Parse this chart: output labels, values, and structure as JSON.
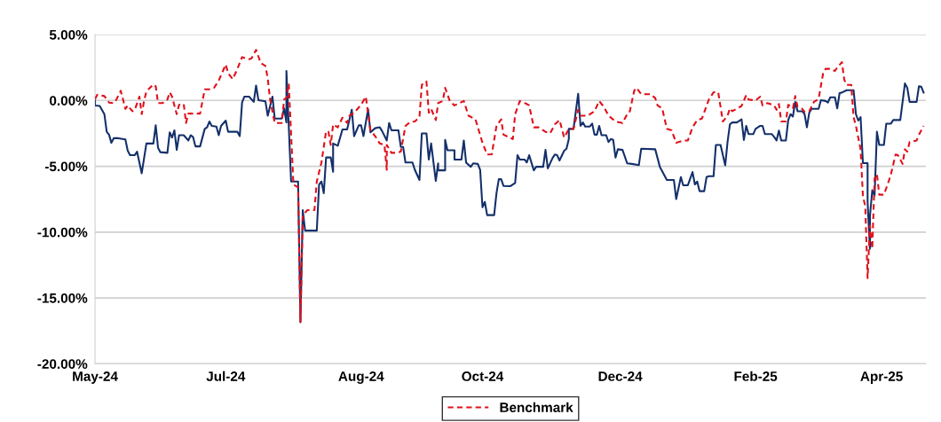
{
  "chart_data": {
    "type": "line",
    "xlim": [
      "2024-05-06",
      "2025-04-27"
    ],
    "ylim": [
      -20,
      5
    ],
    "xticks": [
      {
        "value": "2024-05-06",
        "label": "May-24"
      },
      {
        "value": "2024-07-01",
        "label": "Jul-24"
      },
      {
        "value": "2024-08-28",
        "label": "Aug-24"
      },
      {
        "value": "2024-10-19",
        "label": "Oct-24"
      },
      {
        "value": "2024-12-17",
        "label": "Dec-24"
      },
      {
        "value": "2025-02-13",
        "label": "Feb-25"
      },
      {
        "value": "2025-04-08",
        "label": "Apr-25"
      }
    ],
    "yticks": [
      {
        "value": 5,
        "label": "5.00%"
      },
      {
        "value": 0,
        "label": "0.00%"
      },
      {
        "value": -5,
        "label": "-5.00%"
      },
      {
        "value": -10,
        "label": "-10.00%"
      },
      {
        "value": -15,
        "label": "-15.00%"
      },
      {
        "value": -20,
        "label": "-20.00%"
      }
    ],
    "grid": "y",
    "legend": "bottom",
    "marker": "none",
    "series": [
      {
        "color": "#14306b",
        "line_style": "solid",
        "x": [
          "2024-05-06",
          "2024-05-06",
          "2024-05-08",
          "2024-05-10",
          "2024-05-11",
          "2024-05-12",
          "2024-05-13",
          "2024-05-14",
          "2024-05-16",
          "2024-05-19",
          "2024-05-20",
          "2024-05-21",
          "2024-05-23",
          "2024-05-24",
          "2024-05-26",
          "2024-05-28",
          "2024-05-31",
          "2024-06-01",
          "2024-06-02",
          "2024-06-03",
          "2024-06-06",
          "2024-06-07",
          "2024-06-08",
          "2024-06-09",
          "2024-06-10",
          "2024-06-11",
          "2024-06-13",
          "2024-06-15",
          "2024-06-16",
          "2024-06-17",
          "2024-06-18",
          "2024-06-20",
          "2024-06-22",
          "2024-06-23",
          "2024-06-24",
          "2024-06-25",
          "2024-06-27",
          "2024-06-28",
          "2024-06-29",
          "2024-07-01",
          "2024-07-02",
          "2024-07-06",
          "2024-07-07",
          "2024-07-08",
          "2024-07-09",
          "2024-07-11",
          "2024-07-13",
          "2024-07-14",
          "2024-07-15",
          "2024-07-18",
          "2024-07-19",
          "2024-07-21",
          "2024-07-22",
          "2024-07-25",
          "2024-07-26",
          "2024-07-27",
          "2024-07-27",
          "2024-07-29",
          "2024-08-01",
          "2024-08-02",
          "2024-08-03",
          "2024-08-04",
          "2024-08-09",
          "2024-08-10",
          "2024-08-11",
          "2024-08-12",
          "2024-08-13",
          "2024-08-15",
          "2024-08-16",
          "2024-08-16",
          "2024-08-18",
          "2024-08-20",
          "2024-08-22",
          "2024-08-24",
          "2024-08-25",
          "2024-08-27",
          "2024-08-28",
          "2024-08-29",
          "2024-08-31",
          "2024-09-01",
          "2024-09-03",
          "2024-09-05",
          "2024-09-06",
          "2024-09-08",
          "2024-09-09",
          "2024-09-10",
          "2024-09-13",
          "2024-09-14",
          "2024-09-15",
          "2024-09-16",
          "2024-09-19",
          "2024-09-20",
          "2024-09-22",
          "2024-09-23",
          "2024-09-25",
          "2024-09-26",
          "2024-09-27",
          "2024-09-29",
          "2024-09-30",
          "2024-09-30",
          "2024-10-03",
          "2024-10-03",
          "2024-10-04",
          "2024-10-07",
          "2024-10-07",
          "2024-10-10",
          "2024-10-11",
          "2024-10-12",
          "2024-10-14",
          "2024-10-15",
          "2024-10-17",
          "2024-10-18",
          "2024-10-19",
          "2024-10-20",
          "2024-10-21",
          "2024-10-24",
          "2024-10-25",
          "2024-10-26",
          "2024-10-27",
          "2024-10-28",
          "2024-10-31",
          "2024-11-02",
          "2024-11-03",
          "2024-11-04",
          "2024-11-06",
          "2024-11-07",
          "2024-11-08",
          "2024-11-10",
          "2024-11-11",
          "2024-11-14",
          "2024-11-15",
          "2024-11-16",
          "2024-11-18",
          "2024-11-19",
          "2024-11-20",
          "2024-11-21",
          "2024-11-23",
          "2024-11-24",
          "2024-11-25",
          "2024-11-25",
          "2024-11-27",
          "2024-11-28",
          "2024-11-29",
          "2024-11-30",
          "2024-12-01",
          "2024-12-02",
          "2024-12-04",
          "2024-12-05",
          "2024-12-06",
          "2024-12-07",
          "2024-12-08",
          "2024-12-09",
          "2024-12-11",
          "2024-12-12",
          "2024-12-13",
          "2024-12-14",
          "2024-12-15",
          "2024-12-16",
          "2024-12-18",
          "2024-12-20",
          "2024-12-22",
          "2024-12-25",
          "2024-12-26",
          "2025-01-01",
          "2025-01-03",
          "2025-01-06",
          "2025-01-09",
          "2025-01-10",
          "2025-01-12",
          "2025-01-13",
          "2025-01-15",
          "2025-01-17",
          "2025-01-18",
          "2025-01-19",
          "2025-01-20",
          "2025-01-22",
          "2025-01-23",
          "2025-01-24",
          "2025-01-26",
          "2025-01-27",
          "2025-01-29",
          "2025-01-31",
          "2025-02-01",
          "2025-02-02",
          "2025-02-03",
          "2025-02-05",
          "2025-02-07",
          "2025-02-07",
          "2025-02-08",
          "2025-02-09",
          "2025-02-10",
          "2025-02-12",
          "2025-02-13",
          "2025-02-15",
          "2025-02-16",
          "2025-02-17",
          "2025-02-20",
          "2025-02-21",
          "2025-02-22",
          "2025-02-23",
          "2025-02-24",
          "2025-02-26",
          "2025-02-27",
          "2025-02-28",
          "2025-03-01",
          "2025-03-02",
          "2025-03-03",
          "2025-03-05",
          "2025-03-06",
          "2025-03-07",
          "2025-03-08",
          "2025-03-09",
          "2025-03-12",
          "2025-03-13",
          "2025-03-15",
          "2025-03-16",
          "2025-03-17",
          "2025-03-19",
          "2025-03-20",
          "2025-03-21",
          "2025-03-22",
          "2025-03-24",
          "2025-03-27",
          "2025-03-28",
          "2025-03-29",
          "2025-03-30",
          "2025-03-31",
          "2025-04-02",
          "2025-04-02",
          "2025-04-03",
          "2025-04-03",
          "2025-04-04",
          "2025-04-05",
          "2025-04-06",
          "2025-04-07",
          "2025-04-09",
          "2025-04-10",
          "2025-04-12",
          "2025-04-13",
          "2025-04-16",
          "2025-04-18",
          "2025-04-19",
          "2025-04-20",
          "2025-04-23",
          "2025-04-24",
          "2025-04-25",
          "2025-04-26"
        ],
        "values": [
          0,
          -0.38,
          -0.42,
          -1.04,
          -2.38,
          -2.6,
          -3.22,
          -2.87,
          -2.87,
          -2.96,
          -3.82,
          -4.16,
          -4.16,
          -3.89,
          -5.53,
          -3.27,
          -3.27,
          -1.89,
          -3.6,
          -3.93,
          -3.98,
          -2.42,
          -2.82,
          -2.27,
          -3.76,
          -2.64,
          -2.64,
          -3.04,
          -2.64,
          -2.78,
          -3.49,
          -3.49,
          -2.16,
          -2.04,
          -1.6,
          -1.93,
          -1.98,
          -2.64,
          -1.93,
          -1.53,
          -2.38,
          -2.38,
          -2.71,
          -0.16,
          0.29,
          0.29,
          -0.11,
          1.13,
          0.02,
          -0.07,
          -1.16,
          0.29,
          -1.38,
          -1.38,
          -0.6,
          -1.67,
          2.24,
          -6.16,
          -6.16,
          -16.84,
          -8.33,
          -9.89,
          -9.89,
          -6.38,
          -6.16,
          -7.04,
          -4.33,
          -4.33,
          -5.42,
          -3.27,
          -3.44,
          -2.2,
          -2.2,
          -0.71,
          -2.71,
          -1.89,
          -1.89,
          -2.71,
          -0.67,
          -2.42,
          -2.11,
          -2.04,
          -2.33,
          -3.04,
          -1.71,
          -2.27,
          -2.27,
          -3.53,
          -3.53,
          -4.71,
          -4.71,
          -5.27,
          -6.04,
          -2.51,
          -2.51,
          -4.49,
          -3.27,
          -6.11,
          -4.78,
          -5.31,
          -5.31,
          -3.0,
          -3.78,
          -3.78,
          -4.49,
          -4.49,
          -3.04,
          -4.73,
          -5.04,
          -4.78,
          -4.82,
          -5.27,
          -8.11,
          -7.71,
          -8.71,
          -8.71,
          -7.04,
          -5.98,
          -5.98,
          -6.49,
          -6.51,
          -6.27,
          -4.16,
          -4.49,
          -4.49,
          -4.71,
          -4.16,
          -5.31,
          -5.04,
          -5.04,
          -3.76,
          -5.16,
          -4.38,
          -4.11,
          -4.16,
          -4.56,
          -3.82,
          -3.67,
          -2.93,
          -2.16,
          -2.16,
          -0.82,
          0.51,
          -1.93,
          -1.67,
          -1.98,
          -1.98,
          -1.76,
          -2.6,
          -2.6,
          -1.93,
          -2.64,
          -2.64,
          -3.16,
          -2.93,
          -3.0,
          -4.33,
          -3.71,
          -3.76,
          -4.78,
          -4.82,
          -4.91,
          -3.67,
          -3.71,
          -5.04,
          -6.04,
          -6.04,
          -7.49,
          -5.82,
          -6.44,
          -6.44,
          -5.44,
          -6.38,
          -6.16,
          -6.89,
          -6.89,
          -5.82,
          -5.76,
          -5.76,
          -3.38,
          -3.38,
          -4.93,
          -3.16,
          -1.82,
          -1.67,
          -1.67,
          -1.44,
          -1.44,
          -3.0,
          -1.93,
          -2.56,
          -2.56,
          -2.16,
          -1.93,
          -1.93,
          -2.56,
          -2.56,
          -2.78,
          -3.04,
          -2.29,
          -3.04,
          -3.04,
          -1.49,
          -1.04,
          -1.22,
          -0.11,
          -0.82,
          -0.82,
          -1.04,
          -2.04,
          -0.93,
          -0.64,
          -0.64,
          0.02,
          -0.04,
          -0.16,
          0.24,
          0.24,
          -0.6,
          0.56,
          0.6,
          0.78,
          0.78,
          -1.04,
          -1.53,
          -1.27,
          -4.76,
          -4.76,
          -7.71,
          -11.27,
          -8.82,
          -6.82,
          -7.22,
          -2.38,
          -3.38,
          -3.38,
          -1.76,
          -1.76,
          -1.49,
          -1.49,
          1.29,
          0.96,
          -0.11,
          -0.11,
          1.07,
          1.04,
          0.6
        ]
      },
      {
        "name": "Benchmark",
        "color": "#e0101a",
        "line_style": "dashed",
        "x": [
          "2024-05-06",
          "2024-05-07",
          "2024-05-10",
          "2024-05-12",
          "2024-05-14",
          "2024-05-15",
          "2024-05-17",
          "2024-05-18",
          "2024-05-19",
          "2024-05-20",
          "2024-05-22",
          "2024-05-23",
          "2024-05-25",
          "2024-05-26",
          "2024-05-27",
          "2024-05-28",
          "2024-05-31",
          "2024-06-01",
          "2024-06-02",
          "2024-06-04",
          "2024-06-06",
          "2024-06-07",
          "2024-06-08",
          "2024-06-10",
          "2024-06-11",
          "2024-06-13",
          "2024-06-14",
          "2024-06-15",
          "2024-06-20",
          "2024-06-22",
          "2024-06-24",
          "2024-06-26",
          "2024-06-28",
          "2024-07-01",
          "2024-07-02",
          "2024-07-04",
          "2024-07-06",
          "2024-07-08",
          "2024-07-11",
          "2024-07-12",
          "2024-07-14",
          "2024-07-16",
          "2024-07-18",
          "2024-07-19",
          "2024-07-20",
          "2024-07-22",
          "2024-07-25",
          "2024-07-26",
          "2024-07-27",
          "2024-07-28",
          "2024-07-30",
          "2024-08-01",
          "2024-08-02",
          "2024-08-03",
          "2024-08-05",
          "2024-08-08",
          "2024-08-09",
          "2024-08-11",
          "2024-08-13",
          "2024-08-14",
          "2024-08-15",
          "2024-08-16",
          "2024-08-18",
          "2024-08-20",
          "2024-08-22",
          "2024-08-23",
          "2024-08-25",
          "2024-08-28",
          "2024-08-30",
          "2024-09-01",
          "2024-09-03",
          "2024-09-05",
          "2024-09-07",
          "2024-09-08",
          "2024-09-08",
          "2024-09-10",
          "2024-09-12",
          "2024-09-14",
          "2024-09-16",
          "2024-09-18",
          "2024-09-20",
          "2024-09-22",
          "2024-09-23",
          "2024-09-25",
          "2024-09-26",
          "2024-09-27",
          "2024-09-29",
          "2024-09-30",
          "2024-10-02",
          "2024-10-03",
          "2024-10-05",
          "2024-10-07",
          "2024-10-11",
          "2024-10-13",
          "2024-10-16",
          "2024-10-19",
          "2024-10-21",
          "2024-10-23",
          "2024-10-25",
          "2024-10-27",
          "2024-10-28",
          "2024-11-01",
          "2024-11-02",
          "2024-11-04",
          "2024-11-07",
          "2024-11-08",
          "2024-11-10",
          "2024-11-12",
          "2024-11-15",
          "2024-11-17",
          "2024-11-19",
          "2024-11-21",
          "2024-11-23",
          "2024-11-25",
          "2024-11-27",
          "2024-11-29",
          "2024-11-30",
          "2024-12-03",
          "2024-12-06",
          "2024-12-08",
          "2024-12-10",
          "2024-12-12",
          "2024-12-15",
          "2024-12-18",
          "2024-12-20",
          "2024-12-21",
          "2024-12-23",
          "2024-12-24",
          "2024-12-26",
          "2024-12-30",
          "2025-01-01",
          "2025-01-02",
          "2025-01-04",
          "2025-01-06",
          "2025-01-08",
          "2025-01-10",
          "2025-01-13",
          "2025-01-15",
          "2025-01-17",
          "2025-01-19",
          "2025-01-21",
          "2025-01-24",
          "2025-01-26",
          "2025-01-28",
          "2025-01-30",
          "2025-02-01",
          "2025-02-02",
          "2025-02-03",
          "2025-02-07",
          "2025-02-09",
          "2025-02-10",
          "2025-02-13",
          "2025-02-15",
          "2025-02-16",
          "2025-02-18",
          "2025-02-21",
          "2025-02-22",
          "2025-02-23",
          "2025-02-24",
          "2025-02-26",
          "2025-02-27",
          "2025-03-01",
          "2025-03-02",
          "2025-03-03",
          "2025-03-05",
          "2025-03-06",
          "2025-03-08",
          "2025-03-10",
          "2025-03-12",
          "2025-03-14",
          "2025-03-15",
          "2025-03-17",
          "2025-03-19",
          "2025-03-20",
          "2025-03-22",
          "2025-03-23",
          "2025-03-24",
          "2025-03-26",
          "2025-03-27",
          "2025-03-28",
          "2025-03-30",
          "2025-03-31",
          "2025-04-01",
          "2025-04-02",
          "2025-04-03",
          "2025-04-04",
          "2025-04-05",
          "2025-04-06",
          "2025-04-07",
          "2025-04-09",
          "2025-04-11",
          "2025-04-12",
          "2025-04-14",
          "2025-04-15",
          "2025-04-17",
          "2025-04-18",
          "2025-04-19",
          "2025-04-20",
          "2025-04-23",
          "2025-04-24",
          "2025-04-26"
        ],
        "values": [
          0.11,
          0.44,
          0.33,
          -0.16,
          -0.2,
          0.02,
          0.73,
          0.07,
          -0.64,
          -0.38,
          -0.82,
          -0.73,
          0.29,
          -1.04,
          -0.04,
          0.69,
          1.22,
          1.07,
          -0.2,
          -0.2,
          0.07,
          0.62,
          0.29,
          -1.04,
          -0.33,
          -0.27,
          -1.71,
          -1.0,
          -1.0,
          0.84,
          0.84,
          0.96,
          1.51,
          2.73,
          2.07,
          1.62,
          2.4,
          3.29,
          3.13,
          3.18,
          3.84,
          2.84,
          2.62,
          1.67,
          0.07,
          -1.71,
          -1.71,
          0.07,
          0.18,
          1.29,
          -6.38,
          -6.6,
          -16.82,
          -8.71,
          -8.33,
          -8.33,
          -6.16,
          -4.71,
          -2.33,
          -2.38,
          -3.38,
          -1.82,
          -2.04,
          -1.31,
          -1.71,
          -1.16,
          -0.93,
          -0.33,
          0.29,
          -2.27,
          -2.71,
          -3.27,
          -3.38,
          -5.27,
          -3.38,
          -3.98,
          -3.98,
          -3.89,
          -1.93,
          -1.64,
          -1.6,
          -1.27,
          1.18,
          1.44,
          -0.93,
          -0.64,
          -1.49,
          -0.2,
          -0.04,
          0.96,
          -0.04,
          -0.38,
          -0.04,
          -1.16,
          -1.44,
          -3.22,
          -4.11,
          -4.09,
          -1.93,
          -1.44,
          -2.6,
          -2.93,
          -1.04,
          -0.04,
          -0.27,
          -0.38,
          -2.04,
          -2.04,
          -2.38,
          -2.49,
          -1.82,
          -1.49,
          -2.82,
          -2.16,
          -2.16,
          -0.71,
          -1.16,
          -1.16,
          -0.82,
          -0.04,
          -0.49,
          -1.16,
          -1.6,
          -1.71,
          -1.04,
          -0.93,
          0.73,
          0.96,
          0.47,
          0.47,
          0.18,
          -0.38,
          -0.6,
          -2.16,
          -2.27,
          -3.22,
          -3.04,
          -3.04,
          -2.04,
          -1.49,
          -1.38,
          0.07,
          0.62,
          0.62,
          -1.6,
          -1.16,
          -0.6,
          -0.82,
          -0.42,
          0.4,
          0.07,
          0.0,
          0.29,
          -0.38,
          -0.2,
          -0.38,
          -0.71,
          -0.27,
          -1.6,
          -1.6,
          -0.33,
          -0.6,
          0.33,
          -0.49,
          -0.64,
          -0.87,
          -0.82,
          -0.11,
          0.11,
          2.11,
          2.4,
          2.4,
          2.24,
          2.51,
          2.91,
          1.58,
          1.18,
          1.18,
          -1.27,
          -1.93,
          -3.71,
          -7.27,
          -8.04,
          -13.49,
          -9.49,
          -11.27,
          -5.93,
          -5.6,
          -7.16,
          -7.16,
          -6.16,
          -5.6,
          -4.11,
          -4.16,
          -4.82,
          -3.71,
          -3.89,
          -3.16,
          -3.04,
          -2.6,
          -1.93
        ]
      }
    ]
  }
}
